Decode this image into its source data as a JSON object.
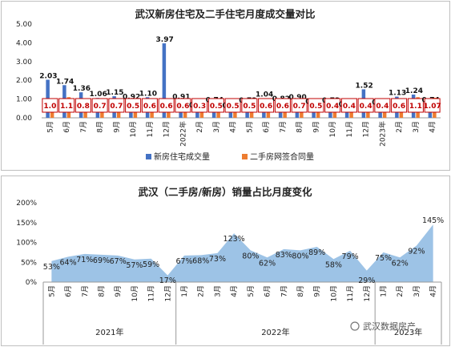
{
  "chart_data": [
    {
      "type": "bar",
      "title": "武汉新房住宅及二手住宅月度成交量对比",
      "ylim": [
        0,
        5
      ],
      "yticks": [
        "5.00",
        "4.00",
        "3.00",
        "2.00",
        "1.00",
        "0.00"
      ],
      "categories": [
        "5月",
        "6月",
        "7月",
        "8月",
        "9月",
        "10月",
        "11月",
        "12月",
        "2022年",
        "2月",
        "3月",
        "4月",
        "5月",
        "6月",
        "7月",
        "8月",
        "9月",
        "10月",
        "11月",
        "12月",
        "2023年",
        "2月",
        "3月",
        "4月"
      ],
      "series": [
        {
          "name": "新房住宅成交量",
          "color": "#4472c4",
          "values": [
            2.03,
            1.74,
            1.36,
            1.06,
            1.15,
            0.92,
            1.1,
            3.97,
            0.91,
            0.48,
            0.74,
            0.45,
            0.73,
            1.04,
            0.82,
            0.9,
            0.67,
            0.73,
            0.51,
            1.52,
            0.63,
            1.13,
            1.24,
            0.74
          ],
          "labels": [
            "2.03",
            "1.74",
            "1.36",
            "1.06",
            "1.15",
            "0.92",
            "1.10",
            "3.97",
            "0.91",
            "0.48",
            "0.74",
            "0.45",
            "0.73",
            "1.04",
            "0.82",
            "0.90",
            "0.67",
            "0.73",
            "0.51",
            "1.52",
            "0.63",
            "1.13",
            "1.24",
            "0.74"
          ]
        },
        {
          "name": "二手房网签合同量",
          "color": "#ed7d31",
          "values": [
            1.0,
            1.1,
            0.8,
            0.7,
            0.7,
            0.5,
            0.6,
            0.6,
            0.6,
            0.3,
            0.5,
            0.5,
            0.5,
            0.6,
            0.6,
            0.7,
            0.5,
            0.4,
            0.4,
            0.4,
            0.4,
            0.6,
            1.1,
            1.07
          ],
          "labels": [
            "1.0",
            "1.1",
            "0.8",
            "0.7",
            "0.7",
            "0.5",
            "0.6",
            "0.6",
            "0.6",
            "0.3",
            "0.5",
            "0.5",
            "0.5",
            "0.6",
            "0.6",
            "0.7",
            "0.5",
            "0.4",
            "0.4",
            "0.4",
            "0.4",
            "0.6",
            "1.1",
            "1.07"
          ]
        }
      ],
      "legend_position": "bottom"
    },
    {
      "type": "area",
      "title": "武汉（二手房/新房）销量占比月度变化",
      "ylim": [
        0,
        200
      ],
      "yticks": [
        "200%",
        "150%",
        "100%",
        "50%",
        "0%"
      ],
      "categories": [
        "5月",
        "6月",
        "7月",
        "8月",
        "9月",
        "10月",
        "11月",
        "12月",
        "1月",
        "2月",
        "3月",
        "4月",
        "5月",
        "6月",
        "7月",
        "8月",
        "9月",
        "10月",
        "11月",
        "12月",
        "1月",
        "2月",
        "3月",
        "4月"
      ],
      "values": [
        53,
        64,
        71,
        69,
        67,
        57,
        59,
        17,
        67,
        68,
        73,
        123,
        80,
        62,
        83,
        80,
        89,
        58,
        79,
        29,
        75,
        62,
        92,
        145
      ],
      "labels": [
        "53%",
        "64%",
        "71%",
        "69%",
        "67%",
        "57%",
        "59%",
        "17%",
        "67%",
        "68%",
        "73%",
        "123%",
        "80%",
        "62%",
        "83%",
        "80%",
        "89%",
        "58%",
        "79%",
        "29%",
        "75%",
        "62%",
        "92%",
        "145%"
      ],
      "color": "#9dc3e6",
      "years": [
        "2021年",
        "2022年",
        "2023年"
      ]
    }
  ],
  "watermark": "武汉数据房产"
}
